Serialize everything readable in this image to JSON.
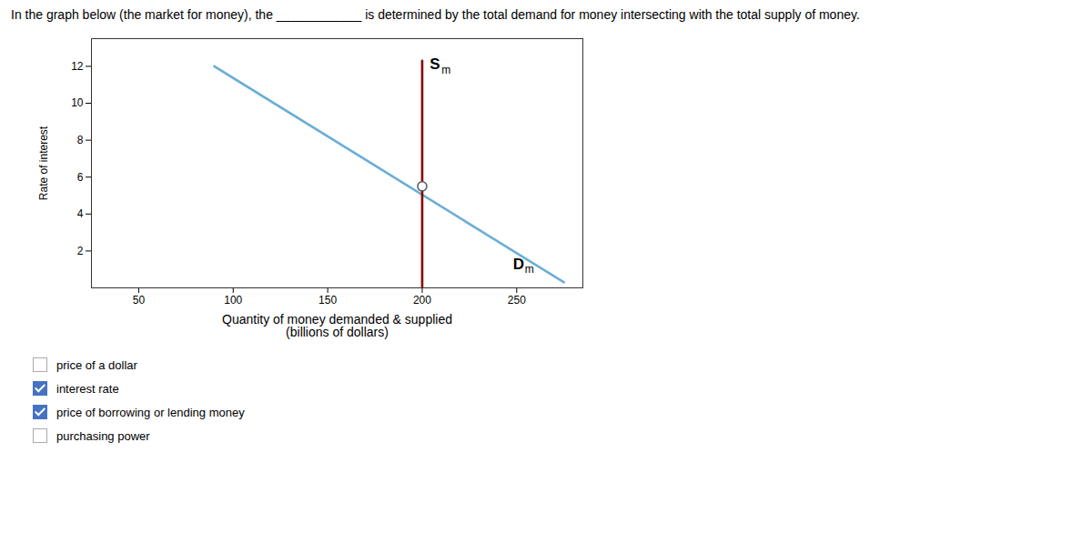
{
  "chart_data": {
    "type": "line",
    "title": "In the graph below (the market for money), the ____________ is determined by the total demand for money intersecting with the total supply of money.",
    "xlabel": "Quantity of money demanded & supplied\n(billions of dollars)",
    "ylabel": "Rate of interest",
    "xlim": [
      25,
      285
    ],
    "ylim": [
      0,
      13.5
    ],
    "xticks": [
      50,
      100,
      150,
      200,
      250
    ],
    "yticks": [
      2,
      4,
      6,
      8,
      10,
      12
    ],
    "grid": false,
    "series": [
      {
        "type": "line",
        "color": "#6baed6",
        "x": [
          90,
          275
        ],
        "values": [
          12.0,
          0.3
        ]
      },
      {
        "type": "line",
        "color": "#8b0000",
        "x": [
          200,
          200
        ],
        "values": [
          0,
          12.3
        ]
      },
      {
        "type": "scatter",
        "marker": "circle",
        "color": "#555555",
        "x": [
          200
        ],
        "values": [
          5.5
        ]
      }
    ],
    "annotations": [
      {
        "text": "D",
        "subscript": "m",
        "x": 248,
        "y": 1.3
      },
      {
        "text": "S",
        "subscript": "m",
        "x": 204,
        "y": 12.1
      }
    ],
    "checkboxes": {
      "color": "#4472c4",
      "items": [
        {
          "label": "price of a dollar",
          "checked": false
        },
        {
          "label": "interest rate",
          "checked": true
        },
        {
          "label": "price of borrowing or lending money",
          "checked": true
        },
        {
          "label": "purchasing power",
          "checked": false
        }
      ]
    }
  }
}
